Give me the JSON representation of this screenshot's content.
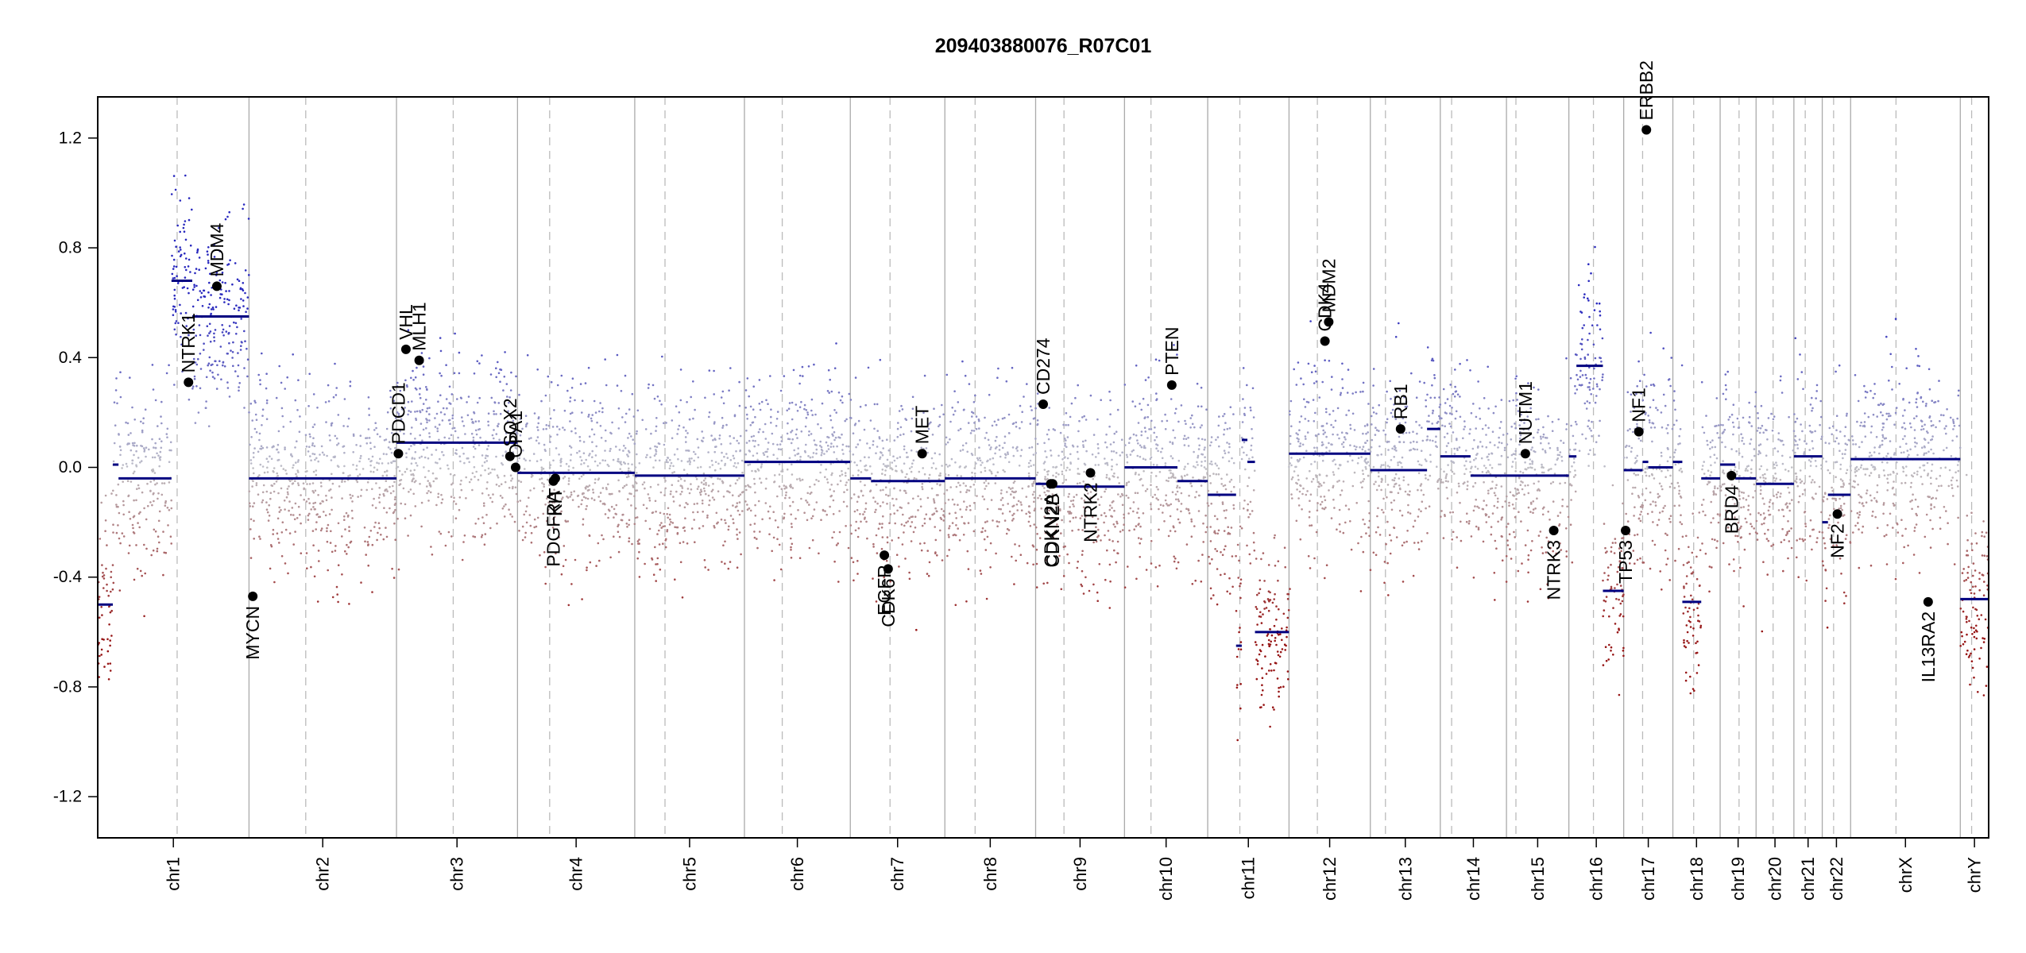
{
  "chart_data": {
    "type": "scatter",
    "title": "209403880076_R07C01",
    "xlabel": "",
    "ylabel": "",
    "ylim": [
      -1.35,
      1.35
    ],
    "yticks": [
      -1.2,
      -0.8,
      -0.4,
      0.0,
      0.4,
      0.8,
      1.2
    ],
    "ytick_labels": [
      "-1.2",
      "-0.8",
      "-0.4",
      "0.0",
      "0.4",
      "0.8",
      "1.2"
    ],
    "grid": false,
    "legend": "none",
    "colors": {
      "segment": "#000080",
      "gain": "#3333bb",
      "neutral": "#bbbbbb",
      "loss": "#8b1010",
      "chrom_boundary": "#aaaaaa",
      "centromere": "#bbbbbb",
      "gene_point": "#000000"
    },
    "chromosomes": [
      {
        "name": "chr1",
        "start": 0.0,
        "end": 0.08,
        "cen": 0.042
      },
      {
        "name": "chr2",
        "start": 0.08,
        "end": 0.158,
        "cen": 0.11
      },
      {
        "name": "chr3",
        "start": 0.158,
        "end": 0.222,
        "cen": 0.188
      },
      {
        "name": "chr4",
        "start": 0.222,
        "end": 0.284,
        "cen": 0.239
      },
      {
        "name": "chr5",
        "start": 0.284,
        "end": 0.342,
        "cen": 0.3
      },
      {
        "name": "chr6",
        "start": 0.342,
        "end": 0.398,
        "cen": 0.362
      },
      {
        "name": "chr7",
        "start": 0.398,
        "end": 0.448,
        "cen": 0.419
      },
      {
        "name": "chr8",
        "start": 0.448,
        "end": 0.496,
        "cen": 0.464
      },
      {
        "name": "chr9",
        "start": 0.496,
        "end": 0.543,
        "cen": 0.511
      },
      {
        "name": "chr10",
        "start": 0.543,
        "end": 0.587,
        "cen": 0.557
      },
      {
        "name": "chr11",
        "start": 0.587,
        "end": 0.63,
        "cen": 0.604
      },
      {
        "name": "chr12",
        "start": 0.63,
        "end": 0.673,
        "cen": 0.645
      },
      {
        "name": "chr13",
        "start": 0.673,
        "end": 0.71,
        "cen": 0.681
      },
      {
        "name": "chr14",
        "start": 0.71,
        "end": 0.745,
        "cen": 0.716
      },
      {
        "name": "chr15",
        "start": 0.745,
        "end": 0.778,
        "cen": 0.75
      },
      {
        "name": "chr16",
        "start": 0.778,
        "end": 0.807,
        "cen": 0.791
      },
      {
        "name": "chr17",
        "start": 0.807,
        "end": 0.833,
        "cen": 0.817
      },
      {
        "name": "chr18",
        "start": 0.833,
        "end": 0.858,
        "cen": 0.844
      },
      {
        "name": "chr19",
        "start": 0.858,
        "end": 0.877,
        "cen": 0.868
      },
      {
        "name": "chr20",
        "start": 0.877,
        "end": 0.897,
        "cen": 0.886
      },
      {
        "name": "chr21",
        "start": 0.897,
        "end": 0.912,
        "cen": 0.903
      },
      {
        "name": "chr22",
        "start": 0.912,
        "end": 0.927,
        "cen": 0.918
      },
      {
        "name": "chrX",
        "start": 0.927,
        "end": 0.985,
        "cen": 0.951
      },
      {
        "name": "chrY",
        "start": 0.985,
        "end": 1.0,
        "cen": 0.991
      }
    ],
    "segments": [
      {
        "x0": 0.0,
        "x1": 0.008,
        "y": -0.5
      },
      {
        "x0": 0.008,
        "x1": 0.011,
        "y": 0.01
      },
      {
        "x0": 0.011,
        "x1": 0.039,
        "y": -0.04
      },
      {
        "x0": 0.039,
        "x1": 0.05,
        "y": 0.68
      },
      {
        "x0": 0.05,
        "x1": 0.08,
        "y": 0.55
      },
      {
        "x0": 0.08,
        "x1": 0.158,
        "y": -0.04
      },
      {
        "x0": 0.158,
        "x1": 0.222,
        "y": 0.09
      },
      {
        "x0": 0.222,
        "x1": 0.284,
        "y": -0.02
      },
      {
        "x0": 0.284,
        "x1": 0.342,
        "y": -0.03
      },
      {
        "x0": 0.342,
        "x1": 0.398,
        "y": 0.02
      },
      {
        "x0": 0.398,
        "x1": 0.409,
        "y": -0.04
      },
      {
        "x0": 0.409,
        "x1": 0.448,
        "y": -0.05
      },
      {
        "x0": 0.448,
        "x1": 0.496,
        "y": -0.04
      },
      {
        "x0": 0.496,
        "x1": 0.502,
        "y": -0.06
      },
      {
        "x0": 0.502,
        "x1": 0.543,
        "y": -0.07
      },
      {
        "x0": 0.543,
        "x1": 0.571,
        "y": 0.0
      },
      {
        "x0": 0.571,
        "x1": 0.587,
        "y": -0.05
      },
      {
        "x0": 0.587,
        "x1": 0.602,
        "y": -0.1
      },
      {
        "x0": 0.602,
        "x1": 0.605,
        "y": -0.65
      },
      {
        "x0": 0.605,
        "x1": 0.608,
        "y": 0.1
      },
      {
        "x0": 0.608,
        "x1": 0.612,
        "y": 0.02
      },
      {
        "x0": 0.612,
        "x1": 0.63,
        "y": -0.6
      },
      {
        "x0": 0.63,
        "x1": 0.673,
        "y": 0.05
      },
      {
        "x0": 0.673,
        "x1": 0.703,
        "y": -0.01
      },
      {
        "x0": 0.703,
        "x1": 0.71,
        "y": 0.14
      },
      {
        "x0": 0.71,
        "x1": 0.726,
        "y": 0.04
      },
      {
        "x0": 0.726,
        "x1": 0.745,
        "y": -0.03
      },
      {
        "x0": 0.745,
        "x1": 0.778,
        "y": -0.03
      },
      {
        "x0": 0.778,
        "x1": 0.782,
        "y": 0.04
      },
      {
        "x0": 0.782,
        "x1": 0.796,
        "y": 0.37
      },
      {
        "x0": 0.796,
        "x1": 0.807,
        "y": -0.45
      },
      {
        "x0": 0.807,
        "x1": 0.817,
        "y": -0.01
      },
      {
        "x0": 0.817,
        "x1": 0.82,
        "y": 0.02
      },
      {
        "x0": 0.82,
        "x1": 0.833,
        "y": 0.0
      },
      {
        "x0": 0.833,
        "x1": 0.838,
        "y": 0.02
      },
      {
        "x0": 0.838,
        "x1": 0.848,
        "y": -0.49
      },
      {
        "x0": 0.848,
        "x1": 0.858,
        "y": -0.04
      },
      {
        "x0": 0.858,
        "x1": 0.866,
        "y": 0.01
      },
      {
        "x0": 0.866,
        "x1": 0.877,
        "y": -0.04
      },
      {
        "x0": 0.877,
        "x1": 0.897,
        "y": -0.06
      },
      {
        "x0": 0.897,
        "x1": 0.912,
        "y": 0.04
      },
      {
        "x0": 0.912,
        "x1": 0.915,
        "y": -0.2
      },
      {
        "x0": 0.915,
        "x1": 0.927,
        "y": -0.1
      },
      {
        "x0": 0.927,
        "x1": 0.985,
        "y": 0.03
      },
      {
        "x0": 0.985,
        "x1": 1.0,
        "y": -0.48
      }
    ],
    "genes": [
      {
        "name": "NTRK1",
        "x": 0.048,
        "y": 0.31
      },
      {
        "name": "MDM4",
        "x": 0.063,
        "y": 0.66
      },
      {
        "name": "MYCN",
        "x": 0.082,
        "y": -0.47
      },
      {
        "name": "PDCD1",
        "x": 0.159,
        "y": 0.05
      },
      {
        "name": "VHL",
        "x": 0.163,
        "y": 0.43
      },
      {
        "name": "MLH1",
        "x": 0.17,
        "y": 0.39
      },
      {
        "name": "SOX2",
        "x": 0.218,
        "y": 0.04
      },
      {
        "name": "OPA1",
        "x": 0.221,
        "y": 0.0
      },
      {
        "name": "PDGFRA",
        "x": 0.241,
        "y": -0.05
      },
      {
        "name": "KIT",
        "x": 0.242,
        "y": -0.04
      },
      {
        "name": "EGFR",
        "x": 0.416,
        "y": -0.32
      },
      {
        "name": "CDK6",
        "x": 0.418,
        "y": -0.37
      },
      {
        "name": "MET",
        "x": 0.436,
        "y": 0.05
      },
      {
        "name": "CD274",
        "x": 0.5,
        "y": 0.23
      },
      {
        "name": "CDKN2A",
        "x": 0.504,
        "y": -0.06
      },
      {
        "name": "CDKN2B",
        "x": 0.505,
        "y": -0.06
      },
      {
        "name": "NTRK2",
        "x": 0.525,
        "y": -0.02
      },
      {
        "name": "PTEN",
        "x": 0.568,
        "y": 0.3
      },
      {
        "name": "CDK4",
        "x": 0.649,
        "y": 0.46
      },
      {
        "name": "MDM2",
        "x": 0.651,
        "y": 0.53
      },
      {
        "name": "RB1",
        "x": 0.689,
        "y": 0.14
      },
      {
        "name": "NUTM1",
        "x": 0.755,
        "y": 0.05
      },
      {
        "name": "NTRK3",
        "x": 0.77,
        "y": -0.23
      },
      {
        "name": "TP53",
        "x": 0.808,
        "y": -0.23
      },
      {
        "name": "NF1",
        "x": 0.815,
        "y": 0.13
      },
      {
        "name": "ERBB2",
        "x": 0.819,
        "y": 1.23
      },
      {
        "name": "BRD4",
        "x": 0.864,
        "y": -0.03
      },
      {
        "name": "NF2",
        "x": 0.92,
        "y": -0.17
      },
      {
        "name": "IL13RA2",
        "x": 0.968,
        "y": -0.49
      }
    ]
  }
}
